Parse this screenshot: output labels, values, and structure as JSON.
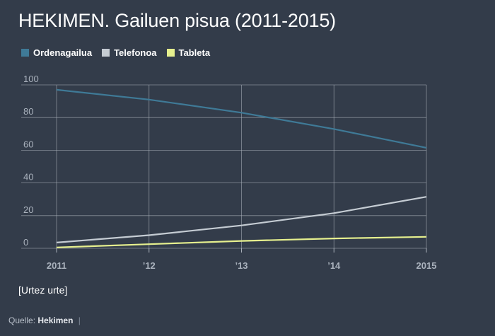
{
  "title": "HEKIMEN. Gailuen pisua (2011-2015)",
  "note": "[Urtez urte]",
  "source": {
    "label": "Quelle:",
    "name": "Hekimen",
    "separator": "|"
  },
  "colors": {
    "background": "#333c4a",
    "grid": "#a9b0b9",
    "axis_text": "#aab2bd"
  },
  "chart_data": {
    "type": "line",
    "x": [
      2011,
      2012,
      2013,
      2014,
      2015
    ],
    "x_tick_labels": [
      "2011",
      "’​12",
      "’13",
      "’14",
      "2015"
    ],
    "ylim": [
      0,
      100
    ],
    "y_ticks": [
      0,
      20,
      40,
      60,
      80,
      100
    ],
    "grid": true,
    "legend_position": "top-left",
    "series": [
      {
        "name": "Ordenagailua",
        "color": "#3f7a97",
        "values": [
          97,
          91,
          83,
          73,
          61.5
        ]
      },
      {
        "name": "Telefonoa",
        "color": "#c5ccd3",
        "values": [
          3.5,
          8,
          14,
          21.5,
          31.5
        ]
      },
      {
        "name": "Tableta",
        "color": "#e6f08e",
        "values": [
          0.5,
          2.5,
          4.5,
          6,
          7
        ]
      }
    ]
  }
}
